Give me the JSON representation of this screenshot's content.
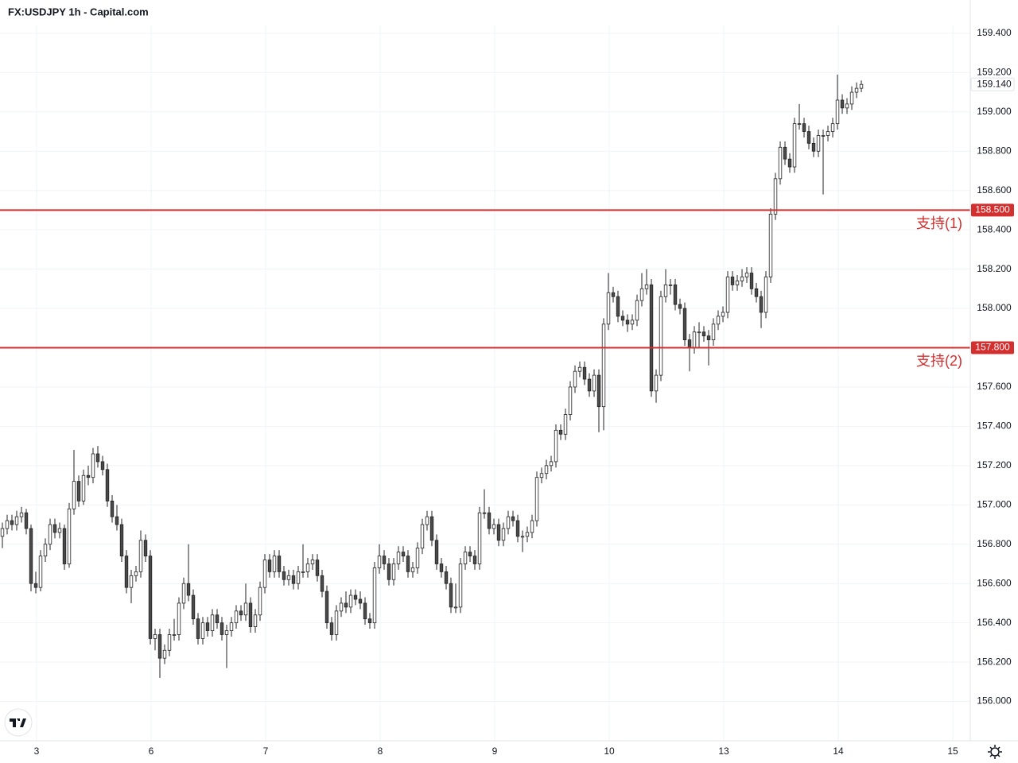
{
  "chart_data": {
    "type": "candlestick",
    "title": "FX:USDJPY 1h - Capital.com",
    "ylim": [
      155.8,
      159.44
    ],
    "xlim": [
      -0.5,
      202.83
    ],
    "grid": true,
    "up_color": "#ffffff",
    "down_color": "#4a4a4a",
    "wick_color": "#222222",
    "level_color": "#d32f2f",
    "yticks": [
      {
        "value": 156.0,
        "label": "156.000"
      },
      {
        "value": 156.2,
        "label": "156.200"
      },
      {
        "value": 156.4,
        "label": "156.400"
      },
      {
        "value": 156.6,
        "label": "156.600"
      },
      {
        "value": 156.8,
        "label": "156.800"
      },
      {
        "value": 157.0,
        "label": "157.000"
      },
      {
        "value": 157.2,
        "label": "157.200"
      },
      {
        "value": 157.4,
        "label": "157.400"
      },
      {
        "value": 157.6,
        "label": "157.600"
      },
      {
        "value": 157.8,
        "label": "157.800"
      },
      {
        "value": 158.0,
        "label": "158.000"
      },
      {
        "value": 158.2,
        "label": "158.200"
      },
      {
        "value": 158.4,
        "label": "158.400"
      },
      {
        "value": 158.6,
        "label": "158.600"
      },
      {
        "value": 158.8,
        "label": "158.800"
      },
      {
        "value": 159.0,
        "label": "159.000"
      },
      {
        "value": 159.2,
        "label": "159.200"
      },
      {
        "value": 159.4,
        "label": "159.400"
      }
    ],
    "xticks": [
      {
        "value": 7.17,
        "label": "3"
      },
      {
        "value": 31.17,
        "label": "6"
      },
      {
        "value": 55.17,
        "label": "7"
      },
      {
        "value": 79.17,
        "label": "8"
      },
      {
        "value": 103.17,
        "label": "9"
      },
      {
        "value": 127.17,
        "label": "10"
      },
      {
        "value": 151.17,
        "label": "13"
      },
      {
        "value": 175.17,
        "label": "14"
      },
      {
        "value": 199.17,
        "label": "15"
      }
    ],
    "levels": [
      {
        "value": 158.5,
        "label": "158.500",
        "text": "支持(1)"
      },
      {
        "value": 157.8,
        "label": "157.800",
        "text": "支持(2)"
      }
    ],
    "last_price": {
      "value": 159.14,
      "label": "159.140"
    },
    "ohlc": [
      [
        156.84,
        156.91,
        156.78,
        156.88
      ],
      [
        156.88,
        156.95,
        156.85,
        156.92
      ],
      [
        156.92,
        156.95,
        156.87,
        156.9
      ],
      [
        156.9,
        156.97,
        156.87,
        156.94
      ],
      [
        156.94,
        156.99,
        156.91,
        156.96
      ],
      [
        156.96,
        156.98,
        156.85,
        156.88
      ],
      [
        156.88,
        156.9,
        156.56,
        156.6
      ],
      [
        156.6,
        156.66,
        156.55,
        156.58
      ],
      [
        156.58,
        156.77,
        156.56,
        156.74
      ],
      [
        156.74,
        156.83,
        156.71,
        156.8
      ],
      [
        156.8,
        156.93,
        156.77,
        156.9
      ],
      [
        156.9,
        156.93,
        156.83,
        156.86
      ],
      [
        156.86,
        156.91,
        156.83,
        156.88
      ],
      [
        156.88,
        156.9,
        156.67,
        156.7
      ],
      [
        156.7,
        157.01,
        156.68,
        156.98
      ],
      [
        156.98,
        157.28,
        156.95,
        157.12
      ],
      [
        157.12,
        157.15,
        156.99,
        157.02
      ],
      [
        157.02,
        157.18,
        157.0,
        157.15
      ],
      [
        157.15,
        157.2,
        157.1,
        157.14
      ],
      [
        157.14,
        157.29,
        157.11,
        157.26
      ],
      [
        157.26,
        157.3,
        157.19,
        157.22
      ],
      [
        157.22,
        157.25,
        157.15,
        157.18
      ],
      [
        157.18,
        157.21,
        156.99,
        157.02
      ],
      [
        157.02,
        157.05,
        156.91,
        156.94
      ],
      [
        156.94,
        157.0,
        156.87,
        156.9
      ],
      [
        156.9,
        156.93,
        156.71,
        156.74
      ],
      [
        156.74,
        156.77,
        156.55,
        156.58
      ],
      [
        156.58,
        156.67,
        156.5,
        156.64
      ],
      [
        156.64,
        156.69,
        156.61,
        156.66
      ],
      [
        156.66,
        156.87,
        156.63,
        156.82
      ],
      [
        156.82,
        156.85,
        156.71,
        156.74
      ],
      [
        156.74,
        156.77,
        156.29,
        156.32
      ],
      [
        156.32,
        156.37,
        156.26,
        156.34
      ],
      [
        156.34,
        156.37,
        156.12,
        156.22
      ],
      [
        156.22,
        156.29,
        156.19,
        156.26
      ],
      [
        156.26,
        156.37,
        156.23,
        156.34
      ],
      [
        156.34,
        156.42,
        156.31,
        156.34
      ],
      [
        156.34,
        156.53,
        156.31,
        156.5
      ],
      [
        156.5,
        156.63,
        156.47,
        156.6
      ],
      [
        156.6,
        156.8,
        156.51,
        156.54
      ],
      [
        156.54,
        156.57,
        156.39,
        156.42
      ],
      [
        156.42,
        156.45,
        156.29,
        156.32
      ],
      [
        156.32,
        156.43,
        156.29,
        156.4
      ],
      [
        156.4,
        156.43,
        156.33,
        156.36
      ],
      [
        156.36,
        156.47,
        156.33,
        156.44
      ],
      [
        156.44,
        156.47,
        156.37,
        156.4
      ],
      [
        156.4,
        156.43,
        156.31,
        156.34
      ],
      [
        156.34,
        156.39,
        156.17,
        156.36
      ],
      [
        156.36,
        156.43,
        156.33,
        156.4
      ],
      [
        156.4,
        156.49,
        156.37,
        156.46
      ],
      [
        156.46,
        156.49,
        156.41,
        156.44
      ],
      [
        156.44,
        156.6,
        156.41,
        156.5
      ],
      [
        156.5,
        156.53,
        156.35,
        156.38
      ],
      [
        156.38,
        156.47,
        156.35,
        156.44
      ],
      [
        156.44,
        156.61,
        156.41,
        156.58
      ],
      [
        156.58,
        156.75,
        156.55,
        156.72
      ],
      [
        156.72,
        156.75,
        156.63,
        156.66
      ],
      [
        156.66,
        156.77,
        156.63,
        156.74
      ],
      [
        156.74,
        156.77,
        156.63,
        156.66
      ],
      [
        156.66,
        156.69,
        156.59,
        156.62
      ],
      [
        156.62,
        156.67,
        156.59,
        156.64
      ],
      [
        156.64,
        156.67,
        156.57,
        156.6
      ],
      [
        156.6,
        156.69,
        156.57,
        156.66
      ],
      [
        156.66,
        156.8,
        156.63,
        156.66
      ],
      [
        156.66,
        156.73,
        156.63,
        156.7
      ],
      [
        156.7,
        156.75,
        156.67,
        156.72
      ],
      [
        156.72,
        156.75,
        156.61,
        156.64
      ],
      [
        156.64,
        156.67,
        156.53,
        156.56
      ],
      [
        156.56,
        156.59,
        156.37,
        156.4
      ],
      [
        156.4,
        156.43,
        156.31,
        156.34
      ],
      [
        156.34,
        156.49,
        156.31,
        156.46
      ],
      [
        156.46,
        156.53,
        156.43,
        156.5
      ],
      [
        156.5,
        156.56,
        156.45,
        156.48
      ],
      [
        156.48,
        156.57,
        156.45,
        156.54
      ],
      [
        156.54,
        156.57,
        156.49,
        156.52
      ],
      [
        156.52,
        156.56,
        156.47,
        156.5
      ],
      [
        156.5,
        156.53,
        156.39,
        156.42
      ],
      [
        156.42,
        156.45,
        156.37,
        156.4
      ],
      [
        156.4,
        156.71,
        156.37,
        156.68
      ],
      [
        156.68,
        156.8,
        156.65,
        156.74
      ],
      [
        156.74,
        156.77,
        156.67,
        156.7
      ],
      [
        156.7,
        156.73,
        156.59,
        156.62
      ],
      [
        156.62,
        156.73,
        156.59,
        156.7
      ],
      [
        156.7,
        156.79,
        156.67,
        156.76
      ],
      [
        156.76,
        156.79,
        156.71,
        156.74
      ],
      [
        156.74,
        156.77,
        156.63,
        156.66
      ],
      [
        156.66,
        156.71,
        156.63,
        156.68
      ],
      [
        156.68,
        156.81,
        156.65,
        156.78
      ],
      [
        156.78,
        156.93,
        156.75,
        156.9
      ],
      [
        156.9,
        156.97,
        156.87,
        156.94
      ],
      [
        156.94,
        156.97,
        156.79,
        156.82
      ],
      [
        156.82,
        156.85,
        156.67,
        156.7
      ],
      [
        156.7,
        156.73,
        156.63,
        156.66
      ],
      [
        156.66,
        156.69,
        156.57,
        156.6
      ],
      [
        156.6,
        156.63,
        156.45,
        156.48
      ],
      [
        156.48,
        156.6,
        156.45,
        156.48
      ],
      [
        156.48,
        156.73,
        156.45,
        156.7
      ],
      [
        156.7,
        156.79,
        156.67,
        156.76
      ],
      [
        156.76,
        156.79,
        156.71,
        156.74
      ],
      [
        156.74,
        156.77,
        156.67,
        156.7
      ],
      [
        156.7,
        156.99,
        156.67,
        156.96
      ],
      [
        156.96,
        157.08,
        156.93,
        156.96
      ],
      [
        156.96,
        156.99,
        156.85,
        156.88
      ],
      [
        156.88,
        156.93,
        156.85,
        156.9
      ],
      [
        156.9,
        156.93,
        156.79,
        156.82
      ],
      [
        156.82,
        156.91,
        156.79,
        156.88
      ],
      [
        156.88,
        156.97,
        156.85,
        156.94
      ],
      [
        156.94,
        156.97,
        156.89,
        156.92
      ],
      [
        156.92,
        156.95,
        156.81,
        156.84
      ],
      [
        156.84,
        156.87,
        156.76,
        156.84
      ],
      [
        156.84,
        156.89,
        156.81,
        156.86
      ],
      [
        156.86,
        156.95,
        156.83,
        156.92
      ],
      [
        156.92,
        157.17,
        156.89,
        157.14
      ],
      [
        157.14,
        157.19,
        157.11,
        157.16
      ],
      [
        157.16,
        157.23,
        157.13,
        157.2
      ],
      [
        157.2,
        157.25,
        157.17,
        157.22
      ],
      [
        157.22,
        157.41,
        157.19,
        157.38
      ],
      [
        157.38,
        157.41,
        157.33,
        157.36
      ],
      [
        157.36,
        157.49,
        157.33,
        157.46
      ],
      [
        157.46,
        157.63,
        157.43,
        157.6
      ],
      [
        157.6,
        157.71,
        157.57,
        157.68
      ],
      [
        157.68,
        157.73,
        157.65,
        157.7
      ],
      [
        157.7,
        157.73,
        157.61,
        157.64
      ],
      [
        157.64,
        157.67,
        157.55,
        157.58
      ],
      [
        157.58,
        157.69,
        157.55,
        157.66
      ],
      [
        157.66,
        157.69,
        157.37,
        157.5
      ],
      [
        157.5,
        157.95,
        157.38,
        157.92
      ],
      [
        157.92,
        158.18,
        157.89,
        158.08
      ],
      [
        158.08,
        158.11,
        158.03,
        158.06
      ],
      [
        158.06,
        158.09,
        157.93,
        157.96
      ],
      [
        157.96,
        157.99,
        157.91,
        157.94
      ],
      [
        157.94,
        157.97,
        157.88,
        157.92
      ],
      [
        157.92,
        157.97,
        157.89,
        157.94
      ],
      [
        157.94,
        158.07,
        157.91,
        158.04
      ],
      [
        158.04,
        158.18,
        158.01,
        158.1
      ],
      [
        158.1,
        158.2,
        158.07,
        158.12
      ],
      [
        158.12,
        158.15,
        157.55,
        157.58
      ],
      [
        157.58,
        157.69,
        157.52,
        157.66
      ],
      [
        157.66,
        158.09,
        157.63,
        158.06
      ],
      [
        158.06,
        158.2,
        158.03,
        158.12
      ],
      [
        158.12,
        158.15,
        158.07,
        158.12
      ],
      [
        158.12,
        158.15,
        157.99,
        158.02
      ],
      [
        158.02,
        158.05,
        157.97,
        158.0
      ],
      [
        158.0,
        158.03,
        157.81,
        157.84
      ],
      [
        157.84,
        157.87,
        157.68,
        157.8
      ],
      [
        157.8,
        157.91,
        157.77,
        157.88
      ],
      [
        157.88,
        157.93,
        157.8,
        157.88
      ],
      [
        157.88,
        157.91,
        157.83,
        157.86
      ],
      [
        157.86,
        157.89,
        157.71,
        157.84
      ],
      [
        157.84,
        157.95,
        157.81,
        157.92
      ],
      [
        157.92,
        157.99,
        157.89,
        157.96
      ],
      [
        157.96,
        158.01,
        157.93,
        157.98
      ],
      [
        157.98,
        158.19,
        157.95,
        158.16
      ],
      [
        158.16,
        158.19,
        158.09,
        158.12
      ],
      [
        158.12,
        158.17,
        158.09,
        158.14
      ],
      [
        158.14,
        158.2,
        158.11,
        158.16
      ],
      [
        158.16,
        158.21,
        158.13,
        158.18
      ],
      [
        158.18,
        158.21,
        158.07,
        158.1
      ],
      [
        158.1,
        158.13,
        158.03,
        158.06
      ],
      [
        158.06,
        158.09,
        157.9,
        157.98
      ],
      [
        157.98,
        158.19,
        157.95,
        158.16
      ],
      [
        158.16,
        158.51,
        158.13,
        158.48
      ],
      [
        158.48,
        158.69,
        158.45,
        158.66
      ],
      [
        158.66,
        158.85,
        158.63,
        158.82
      ],
      [
        158.82,
        158.85,
        158.73,
        158.76
      ],
      [
        158.76,
        158.79,
        158.69,
        158.72
      ],
      [
        158.72,
        158.97,
        158.69,
        158.94
      ],
      [
        158.94,
        159.04,
        158.91,
        158.94
      ],
      [
        158.94,
        158.97,
        158.87,
        158.9
      ],
      [
        158.9,
        158.93,
        158.81,
        158.84
      ],
      [
        158.84,
        158.87,
        158.77,
        158.8
      ],
      [
        158.8,
        158.91,
        158.77,
        158.88
      ],
      [
        158.88,
        158.91,
        158.58,
        158.88
      ],
      [
        158.88,
        158.93,
        158.85,
        158.9
      ],
      [
        158.9,
        158.97,
        158.87,
        158.94
      ],
      [
        158.94,
        159.19,
        158.91,
        159.06
      ],
      [
        159.06,
        159.09,
        158.99,
        159.02
      ],
      [
        159.02,
        159.07,
        158.99,
        159.04
      ],
      [
        159.04,
        159.13,
        159.01,
        159.1
      ],
      [
        159.1,
        159.15,
        159.07,
        159.12
      ],
      [
        159.12,
        159.16,
        159.1,
        159.14
      ]
    ]
  }
}
